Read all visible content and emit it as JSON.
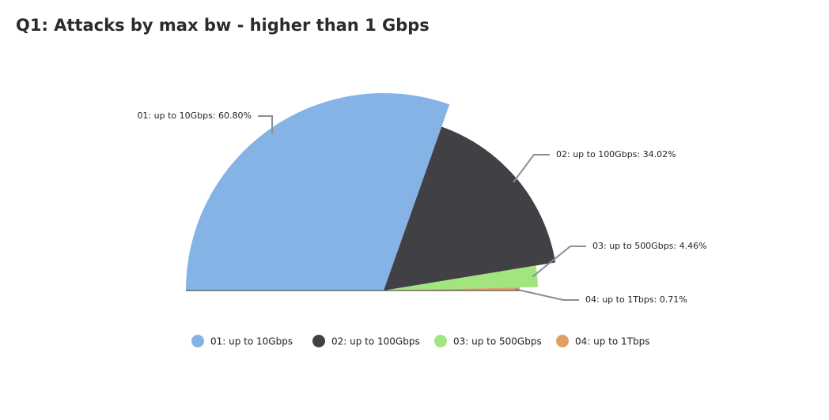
{
  "chart_data": {
    "type": "half-pie",
    "title": "Q1: Attacks by max bw - higher than 1 Gbps",
    "categories": [
      "01: up to 10Gbps",
      "02: up to 100Gbps",
      "03: up to 500Gbps",
      "04: up to 1Tbps"
    ],
    "values": [
      60.8,
      34.02,
      4.46,
      0.71
    ],
    "value_labels": [
      "01: up to 10Gbps: 60.80%",
      "02: up to 100Gbps: 34.02%",
      "03: up to 500Gbps: 4.46%",
      "04: up to 1Tbps: 0.71%"
    ],
    "colors": [
      "#85b3e6",
      "#414045",
      "#a2e57f",
      "#e0a064"
    ]
  }
}
